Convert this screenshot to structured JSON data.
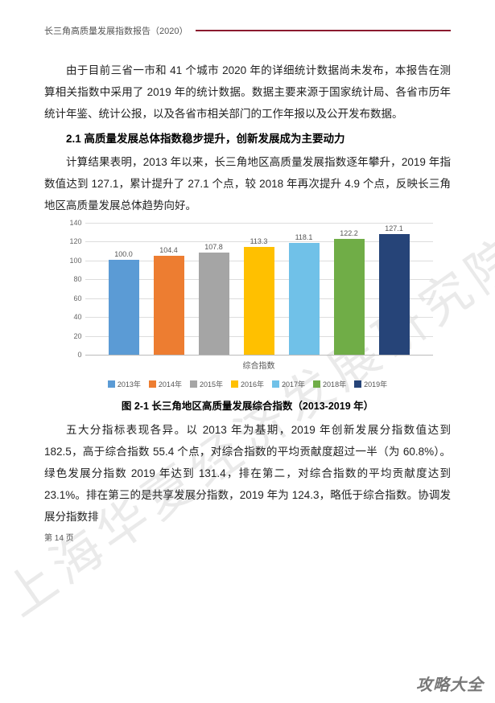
{
  "header": {
    "title": "长三角高质量发展指数报告（2020）"
  },
  "para1": "由于目前三省一市和 41 个城市 2020 年的详细统计数据尚未发布，本报告在测算相关指数中采用了 2019 年的统计数据。数据主要来源于国家统计局、各省市历年统计年鉴、统计公报，以及各省市相关部门的工作年报以及公开发布数据。",
  "section_title": "2.1  高质量发展总体指数稳步提升，创新发展成为主要动力",
  "para2": "计算结果表明，2013 年以来，长三角地区高质量发展指数逐年攀升，2019 年指数值达到 127.1，累计提升了 27.1 个点，较 2018 年再次提升 4.9 个点，反映长三角地区高质量发展总体趋势向好。",
  "chart": {
    "type": "bar",
    "categories": [
      "2013年",
      "2014年",
      "2015年",
      "2016年",
      "2017年",
      "2018年",
      "2019年"
    ],
    "values": [
      100.0,
      104.4,
      107.8,
      113.3,
      118.1,
      122.2,
      127.1
    ],
    "bar_colors": [
      "#5b9bd5",
      "#ed7d31",
      "#a5a5a5",
      "#ffc000",
      "#70c1e8",
      "#70ad47",
      "#264478"
    ],
    "ylim": [
      0,
      140
    ],
    "ytick_step": 20,
    "x_axis_label": "综合指数",
    "background_color": "#ffffff",
    "grid_color": "#dddddd",
    "label_fontsize": 9
  },
  "chart_caption": "图 2-1  长三角地区高质量发展综合指数（2013-2019 年）",
  "para3": "五大分指标表现各异。以 2013 年为基期，2019 年创新发展分指数值达到 182.5，高于综合指数 55.4 个点，对综合指数的平均贡献度超过一半（为 60.8%）。绿色发展分指数 2019 年达到 131.4，排在第二，对综合指数的平均贡献度达到 23.1%。排在第三的是共享发展分指数，2019 年为 124.3，略低于综合指数。协调发展分指数排",
  "page_num": "第 14 页",
  "watermark": "上海华夏经济发展研究院",
  "footer_brand": "攻略大全"
}
